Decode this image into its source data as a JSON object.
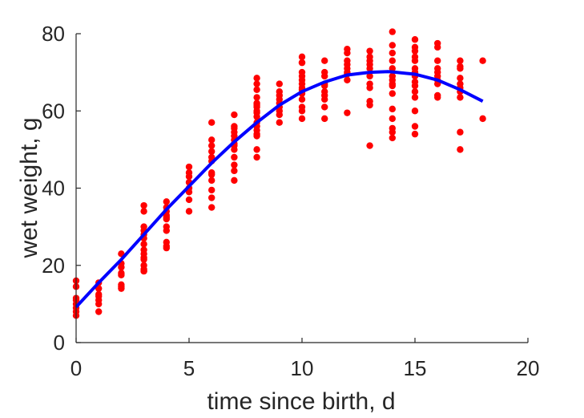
{
  "chart_data": {
    "type": "scatter",
    "title": "",
    "xlabel": "time since birth, d",
    "ylabel": "wet weight, g",
    "xlim": [
      0,
      20
    ],
    "ylim": [
      0,
      80
    ],
    "xticks": [
      0,
      5,
      10,
      15,
      20
    ],
    "yticks": [
      0,
      20,
      40,
      60,
      80
    ],
    "grid": false,
    "legend": "none",
    "colors": {
      "points": "#ff0000",
      "fit": "#0000ff",
      "axis": "#262626"
    },
    "series": [
      {
        "type": "scatter",
        "x": [
          0,
          0,
          0,
          0,
          0,
          0,
          0,
          0,
          1,
          1,
          1,
          1,
          1,
          1,
          1,
          2,
          2,
          2,
          2,
          2,
          2,
          2,
          2,
          3,
          3,
          3,
          3,
          3,
          3,
          3,
          3,
          3,
          3,
          3,
          3,
          3,
          3,
          3,
          4,
          4,
          4,
          4,
          4,
          4,
          4,
          4,
          4,
          4,
          4,
          5,
          5,
          5,
          5,
          5,
          5,
          5,
          5,
          6,
          6,
          6,
          6,
          6,
          6,
          6,
          6,
          6,
          6,
          6,
          6,
          7,
          7,
          7,
          7,
          7,
          7,
          7,
          7,
          7,
          7,
          7,
          7,
          7,
          8,
          8,
          8,
          8,
          8,
          8,
          8,
          8,
          8,
          8,
          8,
          8,
          8,
          8,
          8,
          8,
          8,
          9,
          9,
          9,
          9,
          9,
          9,
          9,
          9,
          9,
          10,
          10,
          10,
          10,
          10,
          10,
          10,
          10,
          10,
          10,
          10,
          10,
          10,
          10,
          11,
          11,
          11,
          11,
          11,
          11,
          11,
          11,
          11,
          11,
          12,
          12,
          12,
          12,
          12,
          12,
          12,
          12,
          12,
          13,
          13,
          13,
          13,
          13,
          13,
          13,
          13,
          13,
          13,
          13,
          14,
          14,
          14,
          14,
          14,
          14,
          14,
          14,
          14,
          14,
          14,
          14,
          14,
          14,
          14,
          15,
          15,
          15,
          15,
          15,
          15,
          15,
          15,
          15,
          15,
          15,
          15,
          15,
          15,
          15,
          16,
          16,
          16,
          16,
          16,
          16,
          16,
          16,
          16,
          16,
          17,
          17,
          17,
          17,
          17,
          17,
          17,
          17,
          17,
          17,
          18,
          18
        ],
        "y": [
          16,
          14.5,
          11.5,
          11,
          10,
          9,
          8,
          7,
          15.5,
          14,
          12.5,
          12,
          11,
          10,
          8,
          23,
          20.5,
          19.5,
          18,
          17.5,
          15,
          14.5,
          14,
          35.5,
          34,
          30,
          29,
          28,
          27,
          25.5,
          24,
          22,
          21.5,
          20,
          19,
          18.5,
          18.5,
          23,
          36.5,
          35,
          34,
          33,
          32.5,
          32,
          30,
          29,
          26,
          25,
          24.5,
          45.5,
          44,
          43,
          41.5,
          40,
          39,
          37,
          34,
          57,
          52.5,
          51,
          49.5,
          48,
          47,
          44,
          43.5,
          42,
          39.5,
          37.5,
          35,
          59,
          56,
          55.5,
          54.5,
          53.5,
          52.5,
          51.5,
          50,
          48,
          46,
          44.5,
          42,
          51,
          68.5,
          67,
          65.5,
          63.5,
          62,
          61,
          60,
          58.5,
          57,
          56,
          55,
          53.5,
          50,
          48,
          61.5,
          59.5,
          54,
          67,
          64,
          63,
          62,
          61,
          60,
          59,
          57,
          65,
          74,
          72.5,
          70,
          68,
          66,
          64.5,
          63,
          60,
          58,
          69,
          67,
          65.5,
          61,
          72.5,
          73,
          70,
          67,
          66.5,
          65,
          63,
          61,
          58,
          69,
          64,
          76,
          75,
          73,
          72,
          71,
          70,
          69.5,
          68,
          59.5,
          75.5,
          74,
          73,
          71,
          69,
          67,
          66,
          62.5,
          61.5,
          51,
          72,
          80.5,
          77,
          75,
          73,
          71,
          69,
          68,
          67,
          64.5,
          60.5,
          58,
          55.5,
          54.5,
          53,
          66.5,
          78.5,
          76.5,
          75.5,
          73,
          71,
          70,
          69,
          67.5,
          66.5,
          63.5,
          60,
          56,
          54,
          65,
          74,
          77.5,
          76.5,
          73,
          71,
          70,
          69,
          68,
          67,
          64,
          63.5,
          73,
          71,
          68.5,
          67,
          66,
          65,
          63.5,
          54.5,
          50,
          71.5,
          73,
          58
        ]
      },
      {
        "type": "line",
        "x": [
          0,
          1,
          2,
          3,
          4,
          5,
          6,
          7,
          8,
          9,
          10,
          11,
          12,
          13,
          13.8,
          14,
          15,
          16,
          17,
          18
        ],
        "y": [
          9.2,
          15.5,
          21.5,
          28,
          34.5,
          40.5,
          46.5,
          52,
          57,
          61.5,
          65,
          67.5,
          69.3,
          70,
          70.2,
          70.1,
          69.5,
          68,
          65.5,
          62.5
        ]
      }
    ]
  }
}
